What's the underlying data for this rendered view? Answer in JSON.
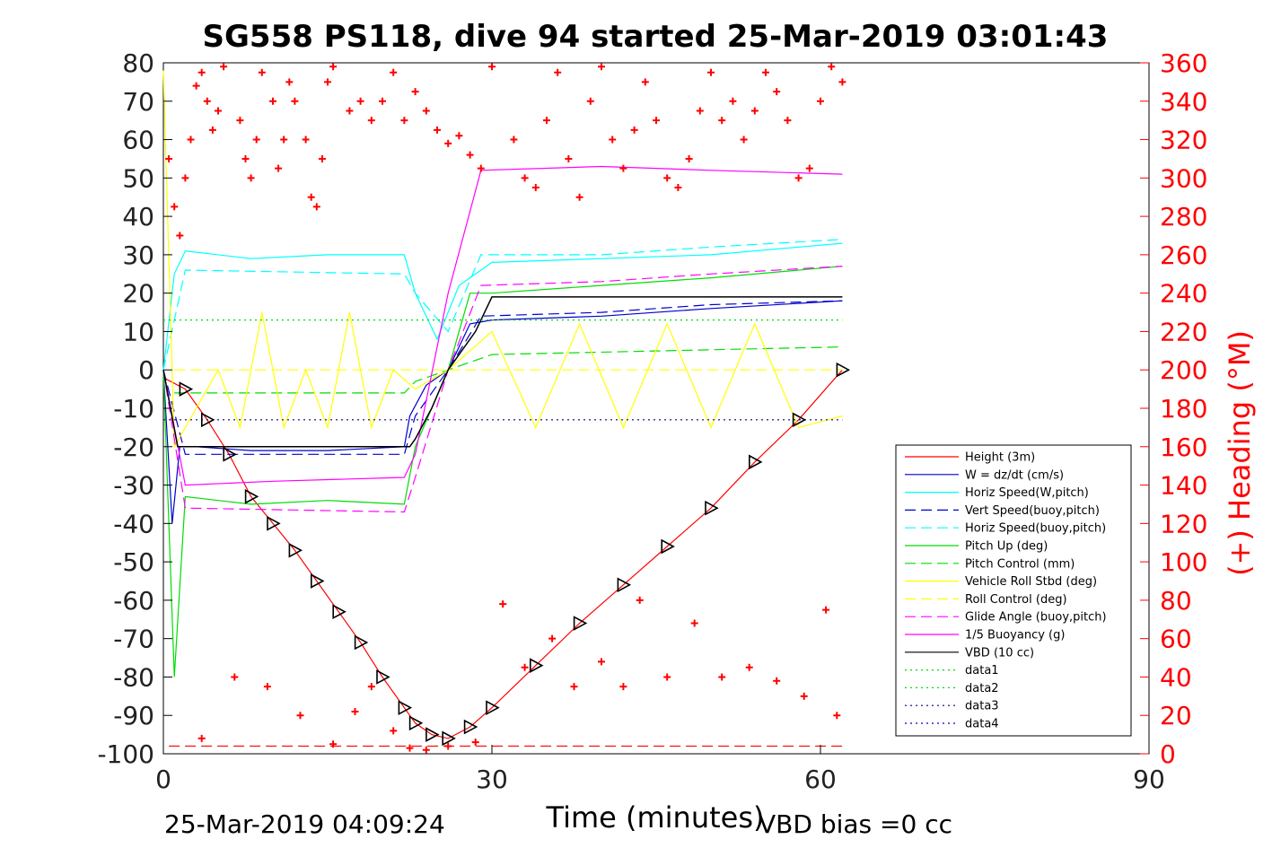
{
  "chart_data": {
    "type": "line",
    "title": "SG558 PS118, dive 94 started 25-Mar-2019 03:01:43",
    "xlabel": "Time (minutes)",
    "ylabel": "",
    "y2label": "(+) Heading (°M)",
    "xlim": [
      0,
      90
    ],
    "ylim": [
      -100,
      80
    ],
    "y2lim": [
      0,
      360
    ],
    "xticks": [
      "0",
      "30",
      "60",
      "90"
    ],
    "yticks": [
      "80",
      "70",
      "60",
      "50",
      "40",
      "30",
      "20",
      "10",
      "0",
      "-10",
      "-20",
      "-30",
      "-40",
      "-50",
      "-60",
      "-70",
      "-80",
      "-90",
      "-100"
    ],
    "y2ticks": [
      "360",
      "340",
      "320",
      "300",
      "280",
      "260",
      "240",
      "220",
      "200",
      "180",
      "160",
      "140",
      "120",
      "100",
      "80",
      "60",
      "40",
      "20",
      "0"
    ],
    "footer_left": "25-Mar-2019 04:09:24",
    "footer_right": "VBD bias =0 cc",
    "legend_position": "bottom-right",
    "grid": false,
    "colors": {
      "height": "#ff0000",
      "w": "#0000cc",
      "horiz": "#00ffff",
      "pitch": "#00dd00",
      "roll": "#ffff00",
      "glide": "#ff00ff",
      "vbd": "#000000",
      "heading": "#ff0000"
    },
    "legend": [
      {
        "label": "Height (3m)",
        "color": "#ff0000",
        "style": "solid"
      },
      {
        "label": "W = dz/dt (cm/s)",
        "color": "#0000cc",
        "style": "solid"
      },
      {
        "label": "Horiz Speed(W,pitch)",
        "color": "#00ffff",
        "style": "solid"
      },
      {
        "label": "Vert Speed(buoy,pitch)",
        "color": "#0000cc",
        "style": "dashed"
      },
      {
        "label": "Horiz Speed(buoy,pitch)",
        "color": "#00ffff",
        "style": "dashed"
      },
      {
        "label": "Pitch Up (deg)",
        "color": "#00dd00",
        "style": "solid"
      },
      {
        "label": "Pitch Control (mm)",
        "color": "#00dd00",
        "style": "dashed"
      },
      {
        "label": "Vehicle Roll Stbd (deg)",
        "color": "#ffff00",
        "style": "solid"
      },
      {
        "label": "Roll Control (deg)",
        "color": "#ffff00",
        "style": "dashed"
      },
      {
        "label": "Glide Angle (buoy,pitch)",
        "color": "#ff00ff",
        "style": "dashed"
      },
      {
        "label": "1/5 Buoyancy (g)",
        "color": "#ff00ff",
        "style": "solid"
      },
      {
        "label": "VBD (10 cc)",
        "color": "#000000",
        "style": "solid"
      },
      {
        "label": "data1",
        "color": "#00dd00",
        "style": "dotted"
      },
      {
        "label": "data2",
        "color": "#00dd00",
        "style": "dotted"
      },
      {
        "label": "data3",
        "color": "#000080",
        "style": "dotted"
      },
      {
        "label": "data4",
        "color": "#0000cc",
        "style": "dotted"
      }
    ],
    "series": [
      {
        "name": "Height (3m)",
        "x": [
          0,
          2,
          4,
          6,
          8,
          10,
          12,
          14,
          16,
          18,
          20,
          22,
          23,
          24.5,
          26,
          28,
          30,
          34,
          38,
          42,
          46,
          50,
          54,
          58,
          62
        ],
        "y": [
          -2,
          -5,
          -13,
          -22,
          -33,
          -40,
          -47,
          -55,
          -63,
          -71,
          -80,
          -88,
          -92,
          -95,
          -96,
          -93,
          -88,
          -77,
          -66,
          -56,
          -46,
          -36,
          -24,
          -13,
          0
        ]
      },
      {
        "name": "W = dz/dt (cm/s)",
        "x": [
          0,
          0.8,
          1.5,
          3,
          8,
          15,
          22,
          22.5,
          24,
          26,
          28,
          30,
          40,
          50,
          62
        ],
        "y": [
          0,
          -40,
          -20,
          -20,
          -21,
          -21,
          -20,
          -12,
          -4,
          0,
          12,
          13,
          14,
          16,
          18
        ]
      },
      {
        "name": "Horiz Speed(W,pitch)",
        "x": [
          0,
          1,
          2,
          8,
          15,
          22,
          23,
          25,
          27,
          30,
          40,
          50,
          62
        ],
        "y": [
          0,
          25,
          31,
          29,
          30,
          30,
          20,
          8,
          22,
          28,
          29,
          30,
          33
        ]
      },
      {
        "name": "Vert Speed(buoy,pitch)",
        "x": [
          0,
          2,
          22,
          23,
          26,
          29,
          40,
          50,
          62
        ],
        "y": [
          0,
          -22,
          -22,
          -12,
          0,
          14,
          15,
          17,
          18
        ]
      },
      {
        "name": "Horiz Speed(buoy,pitch)",
        "x": [
          0,
          2,
          22,
          23,
          26,
          29,
          40,
          50,
          62
        ],
        "y": [
          0,
          26,
          25,
          20,
          10,
          30,
          30,
          32,
          34
        ]
      },
      {
        "name": "Pitch Up (deg)",
        "x": [
          0,
          1,
          2,
          8,
          15,
          22,
          23,
          26,
          28,
          30,
          40,
          50,
          62
        ],
        "y": [
          0,
          -80,
          -33,
          -35,
          -34,
          -35,
          -20,
          0,
          20,
          20,
          22,
          24,
          27
        ]
      },
      {
        "name": "Pitch Control (mm)",
        "x": [
          1,
          22,
          23,
          26,
          30,
          62
        ],
        "y": [
          -6,
          -6,
          -3,
          0,
          4,
          6
        ]
      },
      {
        "name": "Vehicle Roll Stbd (deg)",
        "x": [
          0,
          1,
          3,
          5,
          7,
          9,
          11,
          13,
          15,
          17,
          19,
          21,
          23,
          26,
          30,
          34,
          38,
          42,
          46,
          50,
          54,
          58,
          62
        ],
        "y": [
          78,
          -20,
          -10,
          0,
          -15,
          15,
          -15,
          0,
          -15,
          15,
          -15,
          0,
          -5,
          0,
          10,
          -15,
          12,
          -15,
          12,
          -15,
          12,
          -15,
          -12
        ]
      },
      {
        "name": "Roll Control (deg)",
        "x": [
          1,
          22,
          62
        ],
        "y": [
          0,
          0,
          0
        ]
      },
      {
        "name": "Glide Angle (buoy,pitch)",
        "x": [
          0,
          2,
          22,
          23,
          26,
          29,
          40,
          50,
          62
        ],
        "y": [
          0,
          -36,
          -37,
          -28,
          0,
          22,
          23,
          25,
          27
        ]
      },
      {
        "name": "1/5 Buoyancy (g)",
        "x": [
          0,
          2,
          10,
          22,
          23,
          26,
          29,
          40,
          50,
          62
        ],
        "y": [
          0,
          -30,
          -29,
          -28,
          -22,
          20,
          52,
          53,
          52,
          51
        ]
      },
      {
        "name": "VBD (10 cc)",
        "x": [
          0,
          1.3,
          22.5,
          23,
          24.5,
          26,
          28.5,
          30,
          62
        ],
        "y": [
          0,
          -20,
          -20,
          -18,
          -10,
          0,
          10,
          19,
          19
        ]
      },
      {
        "name": "data2",
        "x": [
          0,
          62
        ],
        "y": [
          13,
          13
        ]
      },
      {
        "name": "data3",
        "x": [
          0,
          62
        ],
        "y": [
          -13,
          -13
        ]
      }
    ],
    "heading_points_deg": {
      "x": [
        0.5,
        1,
        1.5,
        2,
        2.5,
        3,
        3.5,
        4,
        4.5,
        5,
        5.5,
        7,
        7.5,
        8,
        8.5,
        9,
        10,
        10.5,
        11,
        11.5,
        12,
        13,
        13.5,
        14,
        14.5,
        15,
        15.5,
        17,
        18,
        19,
        20,
        21,
        22,
        23,
        24,
        25,
        26,
        27,
        28,
        29,
        30,
        32,
        33,
        34,
        35,
        36,
        37,
        38,
        39,
        40,
        41,
        42,
        43,
        44,
        45,
        46,
        47,
        48,
        49,
        50,
        51,
        52,
        53,
        54,
        55,
        56,
        57,
        58,
        59,
        60,
        61,
        62
      ],
      "y": [
        310,
        285,
        270,
        300,
        320,
        348,
        355,
        340,
        325,
        335,
        358,
        330,
        310,
        300,
        320,
        355,
        340,
        305,
        320,
        350,
        340,
        320,
        290,
        285,
        310,
        350,
        358,
        335,
        340,
        330,
        340,
        355,
        330,
        345,
        335,
        325,
        318,
        322,
        312,
        305,
        358,
        320,
        300,
        295,
        330,
        355,
        310,
        290,
        340,
        358,
        320,
        305,
        325,
        350,
        330,
        300,
        295,
        310,
        335,
        355,
        330,
        340,
        320,
        335,
        355,
        345,
        330,
        300,
        305,
        340,
        358,
        350
      ]
    },
    "heading_low_points_deg": {
      "x": [
        3.5,
        6.5,
        9.5,
        12.5,
        15.5,
        17.5,
        19,
        21,
        22.5,
        24,
        26,
        28.5,
        31,
        33,
        35.5,
        37.5,
        40,
        42,
        43.5,
        46,
        48.5,
        51,
        53.5,
        56,
        58.5,
        60.5,
        61.5
      ],
      "y": [
        8,
        40,
        35,
        20,
        5,
        22,
        35,
        12,
        3,
        2,
        4,
        6,
        78,
        45,
        60,
        35,
        48,
        35,
        80,
        40,
        68,
        40,
        45,
        38,
        30,
        75,
        20
      ]
    }
  }
}
